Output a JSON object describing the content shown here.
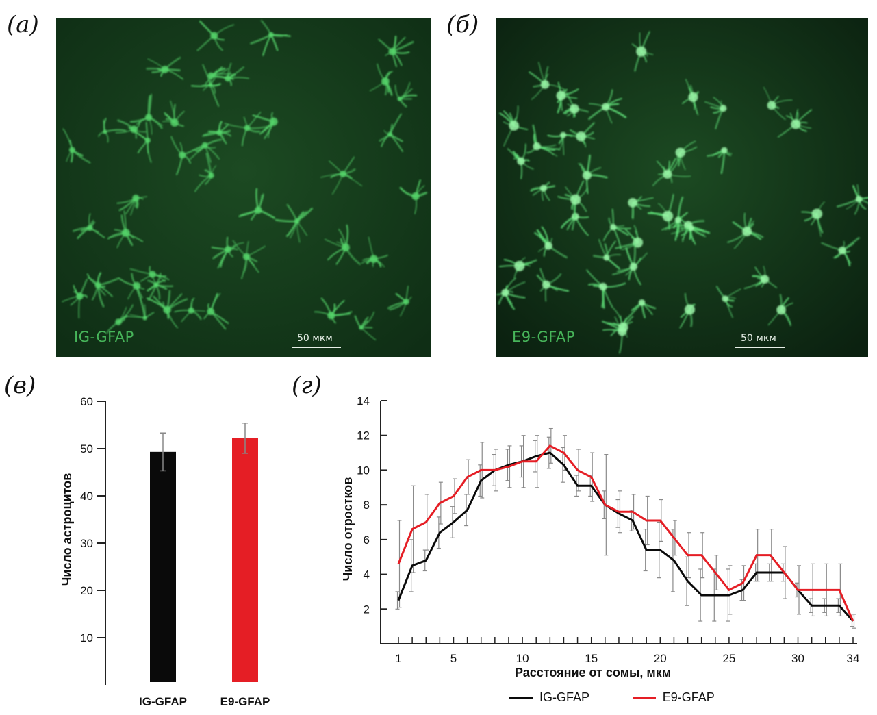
{
  "panels": {
    "a": "(а)",
    "b": "(б)",
    "c": "(в)",
    "d": "(г)"
  },
  "micrographs": [
    {
      "label": "IG-GFAP",
      "scale": "50 мкм",
      "background": "#0f2e15",
      "cell_color": "#55d46a"
    },
    {
      "label": "E9-GFAP",
      "scale": "50 мкм",
      "background": "#0b2110",
      "cell_color": "#5fe078"
    }
  ],
  "chart_data": [
    {
      "type": "bar",
      "categories": [
        "IG-GFAP",
        "E9-GFAP"
      ],
      "values": [
        49.3,
        52.2
      ],
      "errors": [
        4.0,
        3.2
      ],
      "colors": [
        "#0a0a0a",
        "#e51e25"
      ],
      "ylabel": "Число астроцитов",
      "ylim": [
        0,
        60
      ],
      "yticks": [
        10,
        20,
        30,
        40,
        50,
        60
      ]
    },
    {
      "type": "line",
      "xlabel": "Расстояние от сомы, мкм",
      "ylabel": "Число отростков",
      "xticks": [
        1,
        5,
        10,
        15,
        20,
        25,
        30,
        34
      ],
      "yticks": [
        2,
        4,
        6,
        8,
        10,
        12,
        14
      ],
      "xlim": [
        1,
        34
      ],
      "ylim": [
        0,
        14
      ],
      "x": [
        1,
        2,
        3,
        4,
        5,
        6,
        7,
        8,
        9,
        10,
        11,
        12,
        13,
        14,
        15,
        16,
        17,
        18,
        19,
        20,
        21,
        22,
        23,
        24,
        25,
        26,
        27,
        28,
        29,
        30,
        31,
        32,
        33,
        34
      ],
      "series": [
        {
          "name": "IG-GFAP",
          "color": "#0a0a0a",
          "values": [
            2.5,
            4.5,
            4.8,
            6.4,
            7.0,
            7.7,
            9.4,
            10.0,
            10.3,
            10.5,
            10.8,
            11.0,
            10.3,
            9.1,
            9.1,
            8.0,
            7.5,
            7.1,
            5.4,
            5.4,
            4.8,
            3.6,
            2.8,
            2.8,
            2.8,
            3.1,
            4.1,
            4.1,
            4.1,
            3.1,
            2.2,
            2.2,
            2.2,
            1.3
          ],
          "errors": [
            0.5,
            1.5,
            0.6,
            0.9,
            0.9,
            0.9,
            0.9,
            0.9,
            0.9,
            0.9,
            0.9,
            0.9,
            1.0,
            0.6,
            0.6,
            0.8,
            0.8,
            0.6,
            1.2,
            1.6,
            1.8,
            1.4,
            1.5,
            1.5,
            1.5,
            0.6,
            0.5,
            0.5,
            0.5,
            0.4,
            0.4,
            0.4,
            0.4,
            0.3
          ]
        },
        {
          "name": "E9-GFAP",
          "color": "#e51e25",
          "values": [
            4.6,
            6.6,
            7.0,
            8.1,
            8.5,
            9.6,
            10.0,
            10.0,
            10.2,
            10.5,
            10.5,
            11.4,
            11.0,
            10.0,
            9.6,
            8.0,
            7.6,
            7.6,
            7.1,
            7.1,
            6.1,
            5.1,
            5.1,
            4.1,
            3.1,
            3.5,
            5.1,
            5.1,
            4.1,
            3.1,
            3.1,
            3.1,
            3.1,
            1.3
          ],
          "errors": [
            2.5,
            2.5,
            1.6,
            1.2,
            1.0,
            1.0,
            1.6,
            1.2,
            1.2,
            1.5,
            1.5,
            1.0,
            1.0,
            1.2,
            1.4,
            2.9,
            1.2,
            1.0,
            1.4,
            1.2,
            1.0,
            1.3,
            1.3,
            1.0,
            1.4,
            1.0,
            1.5,
            1.5,
            1.5,
            1.4,
            1.5,
            1.5,
            1.5,
            0.4
          ]
        }
      ]
    }
  ]
}
